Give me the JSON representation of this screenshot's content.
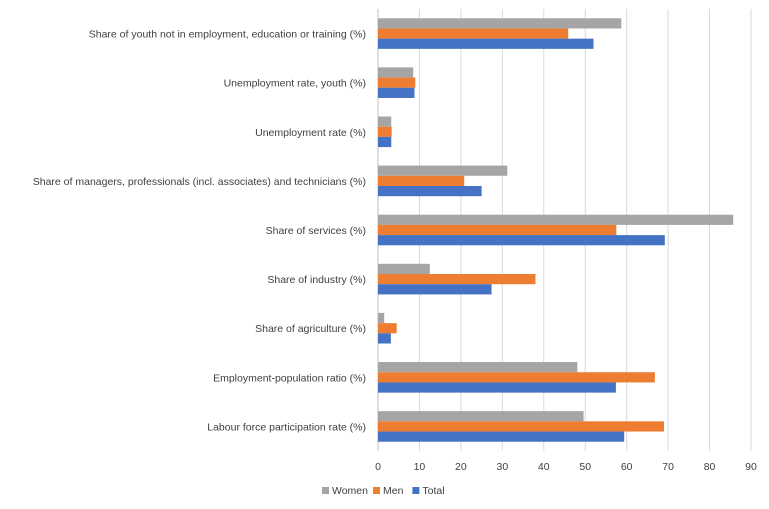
{
  "chart_data": {
    "type": "bar",
    "orientation": "horizontal",
    "categories": [
      "Share of youth not in employment, education or training (%)",
      "Unemployment rate, youth (%)",
      "Unemployment rate (%)",
      "Share of managers, professionals (incl. associates) and technicians (%)",
      "Share of services (%)",
      "Share of industry (%)",
      "Share of agriculture (%)",
      "Employment-population ratio (%)",
      "Labour force participation rate (%)"
    ],
    "series": [
      {
        "name": "Women",
        "color": "#A5A5A5",
        "values": [
          58.7,
          8.5,
          3.2,
          31.2,
          85.7,
          12.5,
          1.5,
          48.1,
          49.6
        ]
      },
      {
        "name": "Men",
        "color": "#ED7D31",
        "values": [
          45.9,
          9.0,
          3.3,
          20.8,
          57.5,
          38.0,
          4.5,
          66.8,
          69.0
        ]
      },
      {
        "name": "Total",
        "color": "#4472C4",
        "values": [
          52.0,
          8.8,
          3.2,
          25.0,
          69.2,
          27.4,
          3.1,
          57.4,
          59.4
        ]
      }
    ],
    "xlim": [
      0,
      90
    ],
    "xticks": [
      "0",
      "10",
      "20",
      "30",
      "40",
      "50",
      "60",
      "70",
      "80",
      "90"
    ],
    "grid": true,
    "legend": "bottom-center",
    "title": "",
    "xlabel": "",
    "ylabel": ""
  }
}
